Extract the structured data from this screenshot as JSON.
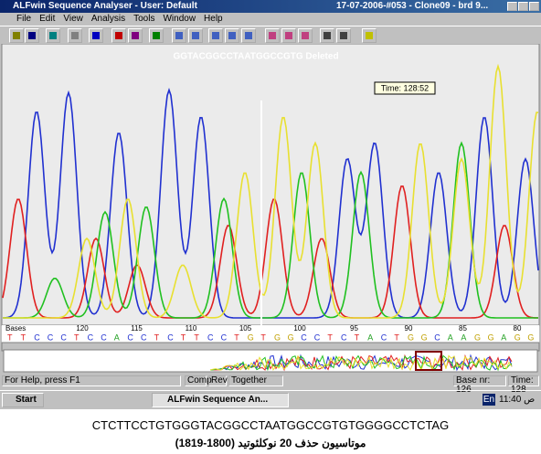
{
  "window": {
    "title": "ALFwin Sequence Analyser - User: Default",
    "document": "17-07-2006-#053 - Clone09 - brd 9..."
  },
  "menu": [
    "File",
    "Edit",
    "View",
    "Analysis",
    "Tools",
    "Window",
    "Help"
  ],
  "chromatogram": {
    "annotation": "GGTACGGCCTAATGGCCGTG Deleted",
    "time_box": "Time: 128:52",
    "bases_label": "Bases",
    "base_positions": [
      "120",
      "115",
      "110",
      "105",
      "100",
      "95",
      "90",
      "85",
      "80"
    ],
    "sequence": [
      "T",
      "T",
      "C",
      "C",
      "C",
      "T",
      "C",
      "C",
      "A",
      "C",
      "C",
      "T",
      "C",
      "T",
      "T",
      "C",
      "C",
      "T",
      "G",
      "T",
      "G",
      "G",
      "C",
      "C",
      "T",
      "C",
      "T",
      "A",
      "C",
      "T",
      "G",
      "G",
      "C",
      "A",
      "A",
      "G",
      "G",
      "A",
      "G",
      "G"
    ]
  },
  "status_bar": {
    "help": "For Help, press F1",
    "buttons": [
      "Comp",
      "Rev",
      "Together"
    ],
    "base_nr": "Base nr: 126",
    "time": "Time: 128"
  },
  "taskbar": {
    "start": "Start",
    "task": "ALFwin Sequence An...",
    "lang": "En",
    "clock": "11:40 ص"
  },
  "caption": {
    "sequence": "CTCTTCCTGTGGGTACGGCCTAATGGCCGTGTGGGGCCTCTAG",
    "note": "موتاسیون حذف 20 نوکلئوتید (1800-1819)"
  }
}
